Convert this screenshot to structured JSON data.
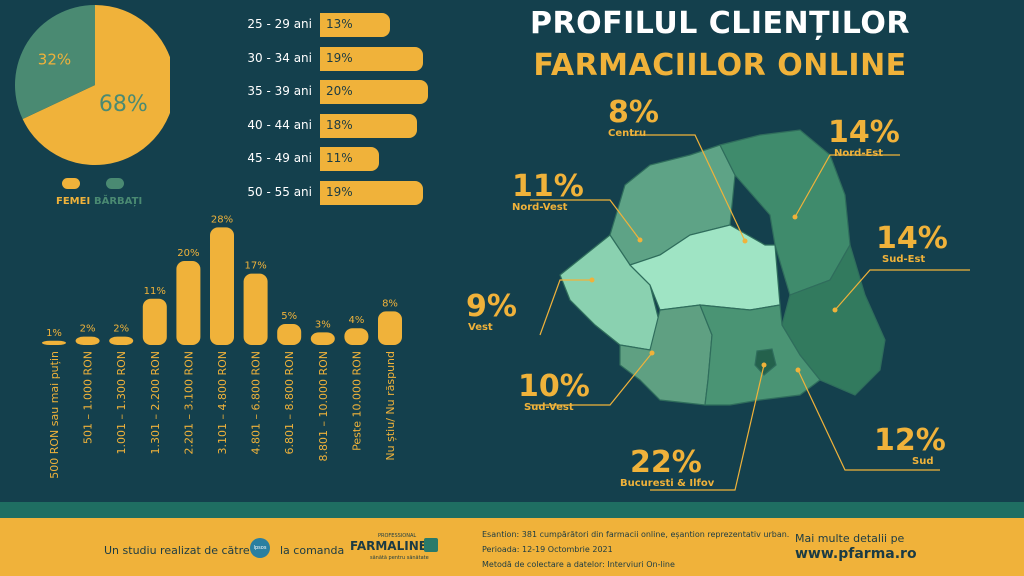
{
  "title": {
    "line1": "PROFILUL CLIENȚILOR",
    "line2": "FARMACIILOR ONLINE"
  },
  "colors": {
    "background": "#14404d",
    "accent": "#f0b23a",
    "green": "#4a8a72"
  },
  "chart_data": [
    {
      "type": "pie",
      "categories": [
        "FEMEI",
        "BĂRBAȚI"
      ],
      "values": [
        68,
        32
      ],
      "labels": [
        "68%",
        "32%"
      ]
    },
    {
      "type": "bar",
      "orientation": "horizontal",
      "categories": [
        "25 - 29 ani",
        "30 - 34 ani",
        "35 - 39 ani",
        "40 - 44 ani",
        "45 - 49 ani",
        "50 - 55 ani"
      ],
      "values": [
        13,
        19,
        20,
        18,
        11,
        19
      ],
      "labels": [
        "13%",
        "19%",
        "20%",
        "18%",
        "11%",
        "19%"
      ]
    },
    {
      "type": "bar",
      "categories": [
        "500 RON sau mai puțin",
        "501 – 1.000 RON",
        "1.001 – 1.300 RON",
        "1.301 – 2.200 RON",
        "2.201 – 3.100 RON",
        "3.101 – 4.800 RON",
        "4.801 – 6.800 RON",
        "6.801 – 8.800 RON",
        "8.801 – 10.000 RON",
        "Peste 10.000 RON",
        "Nu știu/ Nu răspund"
      ],
      "values": [
        1,
        2,
        2,
        11,
        20,
        28,
        17,
        5,
        3,
        4,
        8
      ],
      "labels": [
        "1%",
        "2%",
        "2%",
        "11%",
        "20%",
        "28%",
        "17%",
        "5%",
        "3%",
        "4%",
        "8%"
      ]
    },
    {
      "type": "map",
      "regions": [
        {
          "name": "Centru",
          "value": 8,
          "label": "8%"
        },
        {
          "name": "Nord-Est",
          "value": 14,
          "label": "14%"
        },
        {
          "name": "Nord-Vest",
          "value": 11,
          "label": "11%"
        },
        {
          "name": "Sud-Est",
          "value": 14,
          "label": "14%"
        },
        {
          "name": "Vest",
          "value": 9,
          "label": "9%"
        },
        {
          "name": "Sud-Vest",
          "value": 10,
          "label": "10%"
        },
        {
          "name": "Sud",
          "value": 12,
          "label": "12%"
        },
        {
          "name": "Bucuresti & Ilfov",
          "value": 22,
          "label": "22%"
        }
      ]
    }
  ],
  "footer": {
    "study_by": "Un studiu realizat de către",
    "ipsos": "Ipsos",
    "commissioned": "la comanda",
    "farmaline_top": "PROFESSIONAL",
    "farmaline": "FARMALINE",
    "farmaline_sub": "sănătă pentru sănătate",
    "sample": "Esantion: 381 cumpărători din farmacii online, eșantion reprezentativ urban.",
    "period": "Perioada: 12-19 Octombrie 2021",
    "method": "Metodă de colectare a datelor: Interviuri On-line",
    "more": "Mai multe detalii pe",
    "url": "www.pfarma.ro"
  }
}
